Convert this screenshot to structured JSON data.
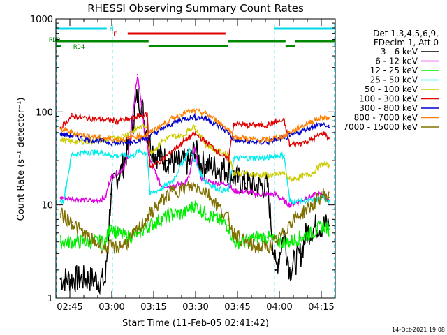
{
  "chart_data": {
    "type": "line",
    "title": "RHESSI Observing Summary Count Rates",
    "xlabel": "Start Time (11-Feb-05 02:41:42)",
    "ylabel": "Count Rate (s⁻¹ detector⁻¹)",
    "yscale": "log",
    "ylim": [
      1,
      1000
    ],
    "xlim_minutes": [
      -1.7,
      98.3
    ],
    "x_ticks": [
      {
        "minute": 3.3,
        "label": "02:45"
      },
      {
        "minute": 18.3,
        "label": "03:00"
      },
      {
        "minute": 33.3,
        "label": "03:15"
      },
      {
        "minute": 48.3,
        "label": "03:30"
      },
      {
        "minute": 63.3,
        "label": "03:45"
      },
      {
        "minute": 78.3,
        "label": "04:00"
      },
      {
        "minute": 93.3,
        "label": "04:15"
      }
    ],
    "y_ticks": [
      {
        "value": 1,
        "label": "1"
      },
      {
        "value": 10,
        "label": "10"
      },
      {
        "value": 100,
        "label": "100"
      },
      {
        "value": 1000,
        "label": "1000"
      }
    ],
    "legend": {
      "placement": "right",
      "header": [
        "Det 1,3,4,5,6,9,",
        "FDecim 1, Att 0"
      ]
    },
    "flag_labels": [
      "N",
      "F",
      "RD0",
      "RD4"
    ],
    "flags": [
      {
        "name": "N",
        "color": "#00d8e8",
        "segments": [
          [
            -1.7,
            16.5
          ],
          [
            76.5,
            98.3
          ]
        ]
      },
      {
        "name": "F",
        "color": "#e00000",
        "segments": [
          [
            24,
            59
          ]
        ]
      },
      {
        "name": "RD0",
        "color": "#008800",
        "segments": [
          [
            -1.7,
            31.5
          ],
          [
            60,
            80.5
          ],
          [
            84,
            98.3
          ]
        ]
      },
      {
        "name": "RD4",
        "color": "#008800",
        "segments": [
          [
            -1.7,
            0.3
          ],
          [
            31.5,
            60
          ],
          [
            80.5,
            84
          ]
        ]
      }
    ],
    "night_markers_minutes": [
      -1.5,
      18.5,
      76.5,
      98
    ],
    "series": [
      {
        "name": "3 - 6 keV",
        "color": "#000000",
        "x": [
          0,
          12,
          16,
          18,
          20,
          22,
          24,
          26,
          27.5,
          29,
          30,
          32,
          34,
          36,
          38,
          40,
          42,
          44,
          46,
          48,
          50,
          52,
          56,
          60,
          62,
          66,
          70,
          74,
          77,
          80,
          82,
          86,
          88,
          92,
          96
        ],
        "y": [
          1.6,
          1.6,
          1.5,
          13,
          20,
          24,
          40,
          80,
          150,
          120,
          80,
          45,
          35,
          33,
          30,
          29,
          28,
          29,
          28,
          40,
          28,
          27,
          25,
          24,
          20,
          17,
          16,
          16,
          2,
          5,
          2,
          3,
          5,
          6,
          6
        ]
      },
      {
        "name": "6 - 12 keV",
        "color": "#e000e0",
        "x": [
          0,
          12,
          16,
          18,
          20,
          22,
          24,
          26,
          27.5,
          29,
          30,
          32,
          34,
          36,
          40,
          44,
          46,
          48,
          50,
          52,
          56,
          60,
          62,
          66,
          70,
          74,
          77,
          80,
          82,
          86,
          88,
          92,
          94,
          96
        ],
        "y": [
          12,
          11,
          12,
          20,
          22,
          24,
          32,
          100,
          250,
          120,
          60,
          30,
          22,
          16,
          16,
          17,
          20,
          40,
          20,
          18,
          17,
          17,
          14,
          14,
          13,
          13,
          13,
          11,
          10,
          11,
          12,
          13,
          13,
          11
        ]
      },
      {
        "name": "12 - 25 keV",
        "color": "#00ee00",
        "x": [
          0,
          10,
          16,
          18,
          20,
          24,
          28,
          32,
          36,
          40,
          44,
          48,
          52,
          56,
          60,
          62,
          66,
          70,
          74,
          77,
          80,
          82,
          86,
          90,
          94,
          96
        ],
        "y": [
          4,
          4,
          4,
          6,
          5,
          4.5,
          5,
          6,
          7,
          8,
          8,
          10,
          8,
          7,
          6,
          4,
          4,
          4.5,
          4.5,
          4,
          4,
          4,
          4.5,
          5,
          6,
          5.5
        ]
      },
      {
        "name": "25 - 50 keV",
        "color": "#00eeee",
        "x": [
          0,
          1,
          4,
          10,
          16,
          18,
          20,
          26,
          28,
          31,
          32,
          36,
          40,
          44,
          46,
          48,
          50,
          52,
          56,
          60,
          62,
          66,
          70,
          74,
          77,
          80,
          82,
          86,
          90,
          94,
          96
        ],
        "y": [
          11,
          11,
          35,
          37,
          36,
          34,
          34,
          34,
          38,
          36,
          13,
          15,
          18,
          30,
          40,
          30,
          22,
          18,
          15,
          14,
          32,
          32,
          32,
          32,
          34,
          34,
          11,
          11,
          11,
          12,
          11
        ]
      },
      {
        "name": "50 - 100 keV",
        "color": "#cccc00",
        "x": [
          0,
          4,
          10,
          16,
          20,
          24,
          28,
          31,
          32,
          34,
          36,
          40,
          44,
          46,
          48,
          50,
          52,
          56,
          60,
          62,
          66,
          70,
          74,
          77,
          80,
          82,
          86,
          90,
          94,
          96
        ],
        "y": [
          50,
          48,
          48,
          50,
          52,
          58,
          68,
          72,
          38,
          40,
          48,
          55,
          55,
          65,
          70,
          55,
          45,
          38,
          35,
          22,
          22,
          21,
          21,
          21,
          22,
          19,
          20,
          22,
          28,
          26
        ]
      },
      {
        "name": "100 - 300 keV",
        "color": "#e00000",
        "x": [
          0,
          4,
          10,
          16,
          20,
          24,
          28,
          31,
          32,
          36,
          40,
          44,
          48,
          52,
          56,
          60,
          62,
          66,
          70,
          74,
          77,
          80,
          82,
          86,
          90,
          94,
          96
        ],
        "y": [
          68,
          90,
          85,
          82,
          80,
          82,
          90,
          95,
          26,
          30,
          38,
          48,
          58,
          48,
          38,
          30,
          75,
          72,
          72,
          72,
          78,
          80,
          44,
          46,
          50,
          60,
          52
        ]
      },
      {
        "name": "300 - 800 keV",
        "color": "#0000cc",
        "x": [
          0,
          4,
          10,
          16,
          20,
          24,
          28,
          31,
          32,
          36,
          40,
          44,
          48,
          52,
          56,
          60,
          62,
          66,
          70,
          74,
          77,
          80,
          82,
          86,
          90,
          94,
          96
        ],
        "y": [
          58,
          55,
          50,
          48,
          46,
          47,
          50,
          52,
          55,
          65,
          75,
          85,
          88,
          85,
          72,
          60,
          50,
          48,
          47,
          47,
          50,
          52,
          55,
          62,
          70,
          74,
          68
        ]
      },
      {
        "name": "800 - 7000 keV",
        "color": "#ff8000",
        "x": [
          0,
          4,
          10,
          16,
          20,
          24,
          28,
          31,
          32,
          36,
          40,
          44,
          48,
          52,
          56,
          60,
          62,
          66,
          70,
          74,
          77,
          80,
          82,
          86,
          90,
          94,
          96
        ],
        "y": [
          66,
          60,
          55,
          52,
          50,
          52,
          55,
          57,
          60,
          72,
          85,
          98,
          102,
          96,
          80,
          65,
          54,
          52,
          50,
          50,
          53,
          55,
          60,
          70,
          80,
          88,
          85
        ]
      },
      {
        "name": "7000 - 15000 keV",
        "color": "#807000",
        "x": [
          0,
          4,
          8,
          12,
          16,
          20,
          24,
          28,
          32,
          36,
          40,
          44,
          48,
          52,
          56,
          60,
          62,
          66,
          70,
          74,
          77,
          80,
          82,
          86,
          90,
          94,
          96
        ],
        "y": [
          8,
          6.5,
          5,
          4,
          3.5,
          3.5,
          4,
          5.5,
          8,
          11,
          14,
          15,
          16,
          14,
          10,
          7,
          5,
          4,
          3.5,
          3.5,
          4,
          5,
          6.5,
          8,
          10,
          13,
          12
        ]
      }
    ]
  },
  "footer": {
    "date_stamp": "14-Oct-2021 19:08"
  }
}
